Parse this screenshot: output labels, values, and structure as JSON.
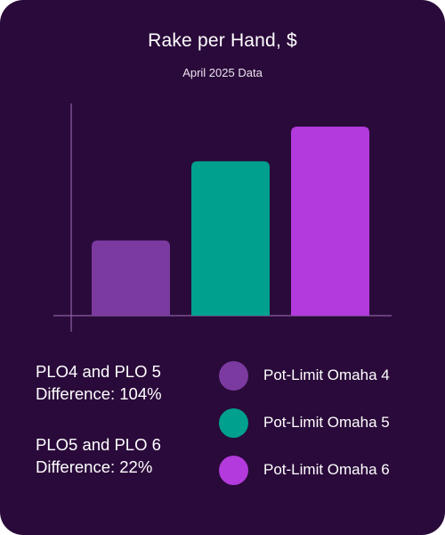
{
  "chart_data": {
    "type": "bar",
    "title": "Rake per Hand, $",
    "subtitle": "April 2025 Data",
    "categories": [
      "Pot-Limit Omaha 4",
      "Pot-Limit Omaha 5",
      "Pot-Limit Omaha 6"
    ],
    "values": [
      0.39,
      0.8,
      0.98
    ],
    "ylim": [
      0,
      1.1
    ],
    "grid": false,
    "legend_position": "bottom-right",
    "colors": [
      "#7b3aa0",
      "#00a08e",
      "#b33add"
    ]
  },
  "notes": [
    {
      "line1": "PLO4 and PLO 5",
      "line2": "Difference: 104%"
    },
    {
      "line1": "PLO5 and PLO 6",
      "line2": "Difference: 22%"
    }
  ],
  "legend": [
    {
      "label": "Pot-Limit Omaha 4",
      "color": "#7b3aa0"
    },
    {
      "label": "Pot-Limit Omaha 5",
      "color": "#00a08e"
    },
    {
      "label": "Pot-Limit Omaha 6",
      "color": "#b33add"
    }
  ]
}
